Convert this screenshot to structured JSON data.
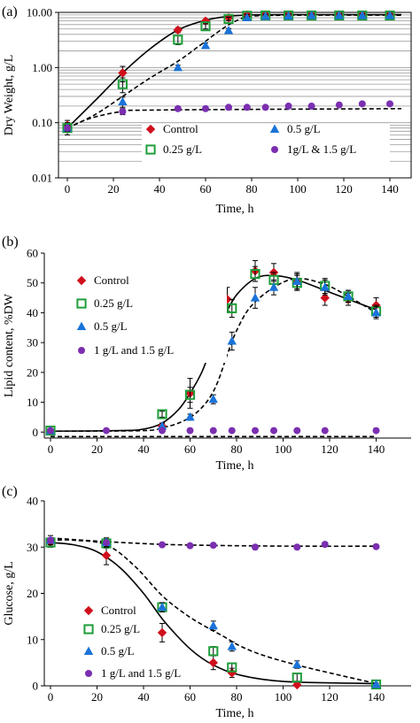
{
  "chart_data": [
    {
      "panel_label": "(a)",
      "type": "scatter",
      "yscale": "log",
      "xlabel": "Time, h",
      "ylabel": "Dry Weight, g/L",
      "xlim": [
        0,
        150
      ],
      "ylim": [
        0.01,
        10
      ],
      "xticks": [
        "0",
        "20",
        "40",
        "60",
        "80",
        "100",
        "120",
        "140"
      ],
      "yticks": [
        "10.00",
        "1.00",
        "0.10",
        "0.01"
      ],
      "grid": "horizontal minor gridlines",
      "legend_position": "bottom-center, inside plot",
      "series": [
        {
          "name": "Control",
          "marker": "diamond",
          "color": "#d0101c",
          "x": [
            0,
            24,
            48,
            60,
            70,
            78,
            86,
            96,
            106,
            118,
            128,
            140
          ],
          "y": [
            0.09,
            0.8,
            4.8,
            7.0,
            8.0,
            9.0,
            9.0,
            9.0,
            9.0,
            9.0,
            9.0,
            9.0
          ],
          "err": [
            0.02,
            0.25,
            0.5,
            0.5,
            0.5,
            0.5,
            0.5,
            0.5,
            0.5,
            0.5,
            0.5,
            0.5
          ]
        },
        {
          "name": "0.25 g/L",
          "marker": "open-square",
          "color": "#1e9e3a",
          "x": [
            0,
            24,
            48,
            60,
            70,
            78,
            86,
            96,
            106,
            118,
            128,
            140
          ],
          "y": [
            0.08,
            0.5,
            3.2,
            5.6,
            7.6,
            8.7,
            8.8,
            8.8,
            8.8,
            8.8,
            8.8,
            8.8
          ],
          "err": [
            0.02,
            0.15,
            0.6,
            0.6,
            0.6,
            0.5,
            0.5,
            0.5,
            0.5,
            0.5,
            0.5,
            0.5
          ]
        },
        {
          "name": "0.5 g/L",
          "marker": "triangle",
          "color": "#1a73d9",
          "x": [
            0,
            24,
            48,
            60,
            70,
            78,
            86,
            96,
            106,
            118,
            128,
            140
          ],
          "y": [
            0.08,
            0.24,
            1.0,
            2.5,
            4.7,
            8.0,
            8.5,
            8.6,
            8.8,
            8.8,
            8.8,
            8.8
          ],
          "err": [
            0.01,
            0.05,
            0.1,
            0.3,
            0.4,
            0.5,
            0.5,
            0.5,
            0.5,
            0.5,
            0.5,
            0.5
          ]
        },
        {
          "name": "1g/L  & 1.5 g/L",
          "marker": "circle",
          "color": "#7b2fb0",
          "x": [
            0,
            24,
            48,
            60,
            70,
            78,
            86,
            96,
            106,
            118,
            128,
            140
          ],
          "y": [
            0.08,
            0.16,
            0.18,
            0.18,
            0.19,
            0.19,
            0.19,
            0.2,
            0.2,
            0.21,
            0.22,
            0.22
          ],
          "err": [
            0.01,
            0.02,
            0.01,
            0.01,
            0.01,
            0.01,
            0.01,
            0.01,
            0.01,
            0.01,
            0.01,
            0.01
          ]
        }
      ],
      "fit_curves": [
        {
          "style": "solid",
          "x": [
            0,
            12,
            24,
            36,
            48,
            60,
            70,
            80,
            100,
            145
          ],
          "y": [
            0.08,
            0.25,
            0.8,
            2.2,
            4.8,
            7.2,
            8.5,
            9.0,
            9.1,
            9.1
          ]
        },
        {
          "style": "dashed",
          "x": [
            0,
            12,
            24,
            36,
            48,
            58,
            66,
            72,
            80,
            100,
            145
          ],
          "y": [
            0.08,
            0.14,
            0.3,
            0.65,
            1.3,
            2.6,
            4.6,
            6.6,
            8.5,
            8.9,
            8.9
          ]
        },
        {
          "style": "dashed",
          "x": [
            0,
            10,
            24,
            40,
            145
          ],
          "y": [
            0.08,
            0.12,
            0.16,
            0.17,
            0.18
          ]
        }
      ]
    },
    {
      "panel_label": "(b)",
      "type": "scatter",
      "xlabel": "Time, h",
      "ylabel": "Lipid content, %DW",
      "xlim": [
        0,
        150
      ],
      "ylim": [
        -2,
        60
      ],
      "xticks": [
        "0",
        "20",
        "40",
        "60",
        "80",
        "100",
        "120",
        "140"
      ],
      "yticks": [
        "0",
        "10",
        "20",
        "30",
        "40",
        "50",
        "60"
      ],
      "legend_position": "left, inside plot",
      "series": [
        {
          "name": "Control",
          "marker": "diamond",
          "color": "#d0101c",
          "x": [
            0,
            48,
            60,
            67,
            76,
            88,
            96,
            106,
            118,
            128,
            140
          ],
          "y": [
            0.5,
            2.0,
            13.0,
            34.0,
            44.5,
            54.0,
            53.5,
            50.5,
            45.0,
            44.5,
            42.5
          ],
          "err": [
            0.5,
            1.0,
            5.0,
            5.0,
            4.0,
            3.5,
            3.0,
            3.0,
            2.5,
            2.0,
            2.5
          ]
        },
        {
          "name": "0.25 g/L",
          "marker": "open-square",
          "color": "#1e9e3a",
          "x": [
            0,
            48,
            60,
            68,
            78,
            88,
            96,
            106,
            118,
            128,
            140
          ],
          "y": [
            0.5,
            6.0,
            12.5,
            30.0,
            41.5,
            53.0,
            51.0,
            50.0,
            49.0,
            45.5,
            40.5
          ],
          "err": [
            0.5,
            1.0,
            2.5,
            3.0,
            3.0,
            2.5,
            2.5,
            2.5,
            2.5,
            2.0,
            2.0
          ]
        },
        {
          "name": "0.5 g/L",
          "marker": "triangle",
          "color": "#1a73d9",
          "x": [
            0,
            48,
            60,
            70,
            78,
            88,
            96,
            106,
            118,
            128,
            140
          ],
          "y": [
            0.5,
            2.0,
            5.0,
            11.0,
            30.5,
            45.0,
            48.5,
            50.5,
            48.5,
            45.5,
            40.0
          ],
          "err": [
            0.5,
            1.0,
            1.0,
            1.5,
            3.0,
            3.5,
            2.5,
            2.5,
            2.5,
            2.0,
            2.0
          ]
        },
        {
          "name": "1 g/L and 1.5 g/L",
          "marker": "circle",
          "color": "#7b2fb0",
          "x": [
            0,
            24,
            48,
            60,
            70,
            78,
            88,
            96,
            106,
            118,
            140
          ],
          "y": [
            0.5,
            0.5,
            0.5,
            0.5,
            0.5,
            0.5,
            0.5,
            0.5,
            0.5,
            0.5,
            0.5
          ],
          "err": [
            0,
            0,
            0,
            0,
            0,
            0,
            0,
            0,
            0,
            0,
            0
          ]
        }
      ],
      "fit_curves": [
        {
          "style": "solid",
          "x": [
            0,
            30,
            40,
            48,
            55,
            60,
            65,
            70,
            75,
            80,
            88,
            96,
            106,
            118,
            128,
            140
          ],
          "y": [
            0.3,
            0.5,
            1.0,
            3.0,
            7.5,
            13.0,
            20.0,
            30.0,
            39.0,
            46.0,
            51.5,
            52.5,
            51.0,
            47.5,
            44.5,
            41.0
          ]
        },
        {
          "style": "dashed",
          "x": [
            0,
            40,
            48,
            55,
            62,
            68,
            72,
            76,
            80,
            86,
            96,
            106,
            118,
            128,
            140
          ],
          "y": [
            0.3,
            0.5,
            1.5,
            3.0,
            6.0,
            11.0,
            17.0,
            26.0,
            34.0,
            42.0,
            48.5,
            51.5,
            49.5,
            45.5,
            40.0
          ]
        },
        {
          "style": "dashed",
          "x": [
            0,
            140
          ],
          "y": [
            -1.5,
            -1.5
          ]
        }
      ]
    },
    {
      "panel_label": "(c)",
      "type": "scatter",
      "xlabel": "Time, h",
      "ylabel": "Glucose, g/L",
      "xlim": [
        0,
        150
      ],
      "ylim": [
        0,
        40
      ],
      "xticks": [
        "0",
        "20",
        "40",
        "60",
        "80",
        "100",
        "120",
        "140"
      ],
      "yticks": [
        "0",
        "10",
        "20",
        "30",
        "40"
      ],
      "legend_position": "bottom-left, inside plot",
      "series": [
        {
          "name": "Control",
          "marker": "diamond",
          "color": "#d0101c",
          "x": [
            0,
            24,
            48,
            70,
            78,
            106
          ],
          "y": [
            31.0,
            28.2,
            11.5,
            5.0,
            2.8,
            0.2
          ],
          "err": [
            1.0,
            2.0,
            2.0,
            1.5,
            1.0,
            0.5
          ]
        },
        {
          "name": "0.25 g/L",
          "marker": "open-square",
          "color": "#1e9e3a",
          "x": [
            0,
            24,
            48,
            70,
            78,
            106,
            140
          ],
          "y": [
            31.0,
            30.8,
            17.0,
            7.5,
            4.0,
            1.8,
            0.3
          ],
          "err": [
            1.0,
            1.0,
            1.0,
            1.0,
            0.8,
            0.8,
            0.3
          ]
        },
        {
          "name": "0.5 g/L",
          "marker": "triangle",
          "color": "#1a73d9",
          "x": [
            0,
            24,
            48,
            70,
            78,
            106,
            140
          ],
          "y": [
            31.5,
            31.0,
            17.0,
            13.0,
            8.5,
            4.6,
            0.3
          ],
          "err": [
            1.0,
            1.0,
            1.0,
            1.0,
            1.0,
            0.8,
            0.3
          ]
        },
        {
          "name": "1 g/L and 1.5 g/L",
          "marker": "circle",
          "color": "#7b2fb0",
          "x": [
            0,
            24,
            48,
            60,
            70,
            88,
            106,
            118,
            140
          ],
          "y": [
            31.5,
            31.0,
            30.5,
            30.3,
            30.4,
            30.0,
            30.0,
            30.6,
            30.1
          ],
          "err": [
            0,
            0,
            0,
            0,
            0,
            0,
            0,
            0,
            0
          ]
        }
      ],
      "fit_curves": [
        {
          "style": "solid",
          "x": [
            0,
            10,
            20,
            30,
            40,
            48,
            55,
            60,
            65,
            70,
            78,
            90,
            106,
            140
          ],
          "y": [
            31.0,
            30.5,
            29.0,
            25.5,
            20.0,
            14.5,
            10.5,
            8.0,
            6.0,
            4.5,
            2.8,
            1.5,
            0.8,
            0.5
          ]
        },
        {
          "style": "dashed",
          "x": [
            0,
            10,
            24,
            36,
            48,
            58,
            66,
            74,
            82,
            92,
            106,
            120,
            140
          ],
          "y": [
            31.5,
            31.5,
            30.5,
            26.0,
            19.5,
            15.5,
            13.0,
            10.8,
            8.5,
            6.5,
            4.5,
            2.8,
            0.5
          ]
        },
        {
          "style": "dashed",
          "x": [
            0,
            20,
            48,
            80,
            110,
            140
          ],
          "y": [
            32.0,
            31.3,
            30.6,
            30.3,
            30.2,
            30.2
          ]
        }
      ]
    }
  ]
}
